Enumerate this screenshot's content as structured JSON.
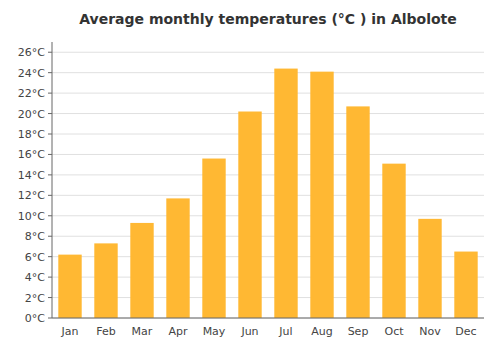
{
  "chart_data": {
    "type": "bar",
    "title": "Average monthly temperatures (°C ) in Albolote",
    "categories": [
      "Jan",
      "Feb",
      "Mar",
      "Apr",
      "May",
      "Jun",
      "Jul",
      "Aug",
      "Sep",
      "Oct",
      "Nov",
      "Dec"
    ],
    "values": [
      6.2,
      7.3,
      9.3,
      11.7,
      15.6,
      20.2,
      24.4,
      24.1,
      20.7,
      15.1,
      9.7,
      6.5
    ],
    "color": "#FFB833",
    "ylim": [
      0,
      27
    ],
    "yticks": [
      {
        "value": 0,
        "label": "0°C"
      },
      {
        "value": 2,
        "label": "2°C"
      },
      {
        "value": 4,
        "label": "4°C"
      },
      {
        "value": 6,
        "label": "6°C"
      },
      {
        "value": 8,
        "label": "8°C"
      },
      {
        "value": 10,
        "label": "10°C"
      },
      {
        "value": 12,
        "label": "12°C"
      },
      {
        "value": 14,
        "label": "14°C"
      },
      {
        "value": 16,
        "label": "16°C"
      },
      {
        "value": 18,
        "label": "18°C"
      },
      {
        "value": 20,
        "label": "20°C"
      },
      {
        "value": 22,
        "label": "22°C"
      },
      {
        "value": 24,
        "label": "24°C"
      },
      {
        "value": 26,
        "label": "26°C"
      }
    ],
    "grid": true
  }
}
